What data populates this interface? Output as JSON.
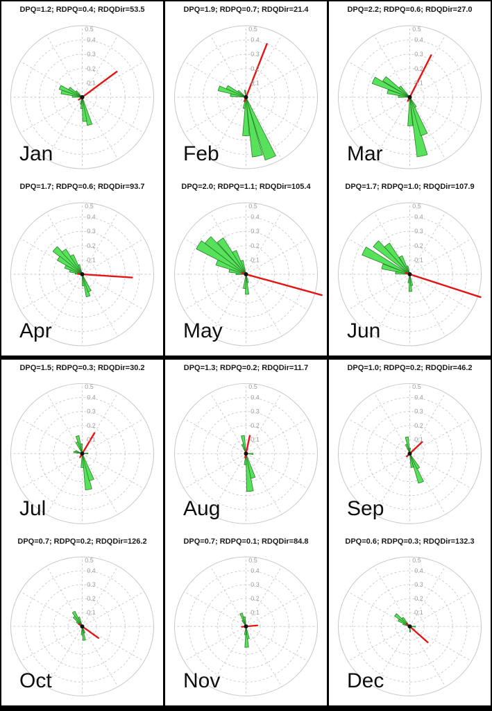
{
  "figure": {
    "background": "#000000",
    "panel_background": "#ffffff"
  },
  "chart_data": {
    "type": "polar-rose-grid",
    "layout": {
      "rows": 4,
      "cols": 3
    },
    "radial_axis": {
      "max": 0.5,
      "ticks": [
        0.1,
        0.2,
        0.3,
        0.4,
        0.5
      ],
      "tick_labels": [
        "0.1",
        "0.2",
        "0.3",
        "0.4",
        "0.5"
      ]
    },
    "angular_axis": {
      "spoke_step_deg": 30,
      "convention": "degrees clockwise from north"
    },
    "style": {
      "petal_fill": "#58e25b",
      "petal_stroke": "#267d26",
      "direction_line": "#e41414",
      "grid_line": "#c8c8c8",
      "tick_label": "#9b9b9b",
      "title_color": "#1a1a1a",
      "month_color": "#0e0e0e",
      "petal_width_deg": 10
    },
    "subplots": [
      {
        "month": "Jan",
        "title": "DPQ=1.2; RDPQ=0.4; RDQDir=53.5",
        "metrics": {
          "DPQ": 1.2,
          "RDPQ": 0.4,
          "RDQDir": 53.5
        },
        "direction_line": {
          "dir_deg": 53.5,
          "length": 0.3
        },
        "petals": [
          [
            294,
            0.17
          ],
          [
            284,
            0.15
          ],
          [
            304,
            0.11
          ],
          [
            274,
            0.07
          ],
          [
            314,
            0.06
          ],
          [
            165,
            0.2
          ],
          [
            174,
            0.17
          ],
          [
            183,
            0.08
          ],
          [
            192,
            0.05
          ]
        ]
      },
      {
        "month": "Feb",
        "title": "DPQ=1.9; RDPQ=0.7; RDQDir=21.4",
        "metrics": {
          "DPQ": 1.9,
          "RDPQ": 0.7,
          "RDQDir": 21.4
        },
        "direction_line": {
          "dir_deg": 21.4,
          "length": 0.4
        },
        "petals": [
          [
            158,
            0.46
          ],
          [
            169,
            0.42
          ],
          [
            180,
            0.27
          ],
          [
            190,
            0.08
          ],
          [
            288,
            0.2
          ],
          [
            298,
            0.15
          ],
          [
            278,
            0.11
          ],
          [
            308,
            0.07
          ],
          [
            352,
            0.05
          ]
        ]
      },
      {
        "month": "Mar",
        "title": "DPQ=2.2; RDPQ=0.6; RDQDir=27.0",
        "metrics": {
          "DPQ": 2.2,
          "RDPQ": 0.6,
          "RDQDir": 27.0
        },
        "direction_line": {
          "dir_deg": 27.0,
          "length": 0.33
        },
        "petals": [
          [
            168,
            0.42
          ],
          [
            159,
            0.28
          ],
          [
            179,
            0.2
          ],
          [
            150,
            0.08
          ],
          [
            295,
            0.28
          ],
          [
            306,
            0.22
          ],
          [
            284,
            0.16
          ],
          [
            316,
            0.1
          ],
          [
            274,
            0.08
          ]
        ]
      },
      {
        "month": "Apr",
        "title": "DPQ=1.7; RDPQ=0.6; RDQDir=93.7",
        "metrics": {
          "DPQ": 1.7,
          "RDPQ": 0.6,
          "RDQDir": 93.7
        },
        "direction_line": {
          "dir_deg": 93.7,
          "length": 0.35
        },
        "petals": [
          [
            313,
            0.26
          ],
          [
            322,
            0.21
          ],
          [
            304,
            0.2
          ],
          [
            331,
            0.15
          ],
          [
            294,
            0.13
          ],
          [
            285,
            0.09
          ],
          [
            340,
            0.07
          ],
          [
            276,
            0.05
          ],
          [
            165,
            0.16
          ],
          [
            157,
            0.13
          ],
          [
            175,
            0.08
          ]
        ]
      },
      {
        "month": "May",
        "title": "DPQ=2.0; RDPQ=1.1; RDQDir=105.4",
        "metrics": {
          "DPQ": 2.0,
          "RDPQ": 1.1,
          "RDQDir": 105.4
        },
        "direction_line": {
          "dir_deg": 105.4,
          "length": 0.55
        },
        "petals": [
          [
            302,
            0.39
          ],
          [
            312,
            0.36
          ],
          [
            323,
            0.3
          ],
          [
            292,
            0.22
          ],
          [
            333,
            0.18
          ],
          [
            282,
            0.12
          ],
          [
            343,
            0.1
          ],
          [
            272,
            0.07
          ],
          [
            177,
            0.14
          ],
          [
            186,
            0.1
          ],
          [
            168,
            0.06
          ]
        ]
      },
      {
        "month": "Jun",
        "title": "DPQ=1.7; RDPQ=1.0; RDQDir=107.9",
        "metrics": {
          "DPQ": 1.7,
          "RDPQ": 1.0,
          "RDQDir": 107.9
        },
        "direction_line": {
          "dir_deg": 107.9,
          "length": 0.52
        },
        "petals": [
          [
            297,
            0.36
          ],
          [
            312,
            0.32
          ],
          [
            322,
            0.26
          ],
          [
            286,
            0.2
          ],
          [
            333,
            0.14
          ],
          [
            276,
            0.1
          ],
          [
            343,
            0.06
          ],
          [
            178,
            0.12
          ],
          [
            170,
            0.08
          ],
          [
            187,
            0.06
          ]
        ]
      },
      {
        "month": "Jul",
        "title": "DPQ=1.5; RDPQ=0.3; RDQDir=30.2",
        "metrics": {
          "DPQ": 1.5,
          "RDPQ": 0.3,
          "RDQDir": 30.2
        },
        "direction_line": {
          "dir_deg": 30.2,
          "length": 0.17
        },
        "petals": [
          [
            170,
            0.26
          ],
          [
            161,
            0.2
          ],
          [
            180,
            0.1
          ],
          [
            345,
            0.13
          ],
          [
            335,
            0.09
          ],
          [
            355,
            0.07
          ],
          [
            281,
            0.06
          ],
          [
            292,
            0.05
          ],
          [
            88,
            0.04
          ]
        ]
      },
      {
        "month": "Aug",
        "title": "DPQ=1.3; RDPQ=0.2; RDQDir=11.7",
        "metrics": {
          "DPQ": 1.3,
          "RDPQ": 0.2,
          "RDQDir": 11.7
        },
        "direction_line": {
          "dir_deg": 11.7,
          "length": 0.13
        },
        "petals": [
          [
            174,
            0.27
          ],
          [
            164,
            0.18
          ],
          [
            184,
            0.08
          ],
          [
            350,
            0.13
          ],
          [
            340,
            0.07
          ],
          [
            92,
            0.05
          ]
        ]
      },
      {
        "month": "Sep",
        "title": "DPQ=1.0; RDPQ=0.2; RDQDir=46.2",
        "metrics": {
          "DPQ": 1.0,
          "RDPQ": 0.2,
          "RDQDir": 46.2
        },
        "direction_line": {
          "dir_deg": 46.2,
          "length": 0.12
        },
        "petals": [
          [
            159,
            0.22
          ],
          [
            150,
            0.12
          ],
          [
            170,
            0.1
          ],
          [
            350,
            0.12
          ],
          [
            340,
            0.07
          ],
          [
            2,
            0.04
          ]
        ]
      },
      {
        "month": "Oct",
        "title": "DPQ=0.7; RDPQ=0.2; RDQDir=126.2",
        "metrics": {
          "DPQ": 0.7,
          "RDPQ": 0.2,
          "RDQDir": 126.2
        },
        "direction_line": {
          "dir_deg": 126.2,
          "length": 0.14
        },
        "petals": [
          [
            330,
            0.12
          ],
          [
            320,
            0.09
          ],
          [
            340,
            0.07
          ],
          [
            310,
            0.05
          ],
          [
            172,
            0.1
          ],
          [
            182,
            0.06
          ],
          [
            162,
            0.05
          ]
        ]
      },
      {
        "month": "Nov",
        "title": "DPQ=0.7; RDPQ=0.1; RDQDir=84.8",
        "metrics": {
          "DPQ": 0.7,
          "RDPQ": 0.1,
          "RDQDir": 84.8
        },
        "direction_line": {
          "dir_deg": 84.8,
          "length": 0.08
        },
        "petals": [
          [
            178,
            0.15
          ],
          [
            170,
            0.09
          ],
          [
            186,
            0.06
          ],
          [
            340,
            0.1
          ],
          [
            350,
            0.07
          ],
          [
            330,
            0.05
          ]
        ]
      },
      {
        "month": "Dec",
        "title": "DPQ=0.6; RDPQ=0.3; RDQDir=132.3",
        "metrics": {
          "DPQ": 0.6,
          "RDPQ": 0.3,
          "RDQDir": 132.3
        },
        "direction_line": {
          "dir_deg": 132.3,
          "length": 0.17
        },
        "petals": [
          [
            310,
            0.13
          ],
          [
            300,
            0.09
          ],
          [
            320,
            0.08
          ],
          [
            290,
            0.05
          ],
          [
            92,
            0.04
          ],
          [
            176,
            0.04
          ]
        ]
      }
    ]
  }
}
